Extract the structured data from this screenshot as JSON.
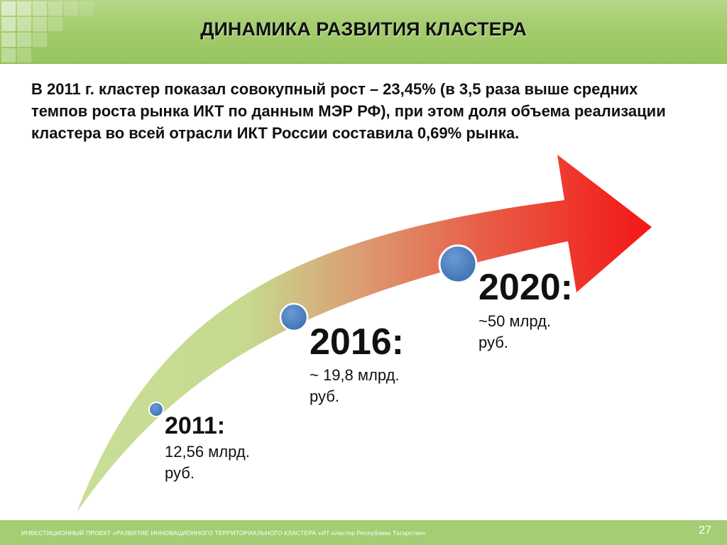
{
  "header": {
    "title": "ДИНАМИКА РАЗВИТИЯ КЛАСТЕРА"
  },
  "intro": {
    "text": "В 2011 г. кластер показал совокупный рост – 23,45% (в 3,5 раза выше средних темпов роста рынка ИКТ по данным МЭР РФ), при этом доля объема реализации кластера во всей отрасли ИКТ России составила 0,69% рынка."
  },
  "milestones": [
    {
      "year": "2011:",
      "value": "12,56 млрд. руб."
    },
    {
      "year": "2016:",
      "value": "~ 19,8 млрд. руб."
    },
    {
      "year": "2020:",
      "value": "~50 млрд. руб."
    }
  ],
  "colors": {
    "header_green": "#a3cc6c",
    "footer_green": "#a5cd73",
    "arrow_start": "#c5dc92",
    "arrow_end": "#f01010",
    "marker_blue": "#4f80c0"
  },
  "footer": {
    "text": "ИНВЕСТИЦИОННЫЙ ПРОЕКТ «РАЗВИТИЕ ИННОВАЦИОННОГО ТЕРРИТОРИАЛЬНОГО КЛАСТЕРА «ИТ-кластер Республики Татарстан»",
    "page_number": "27"
  }
}
